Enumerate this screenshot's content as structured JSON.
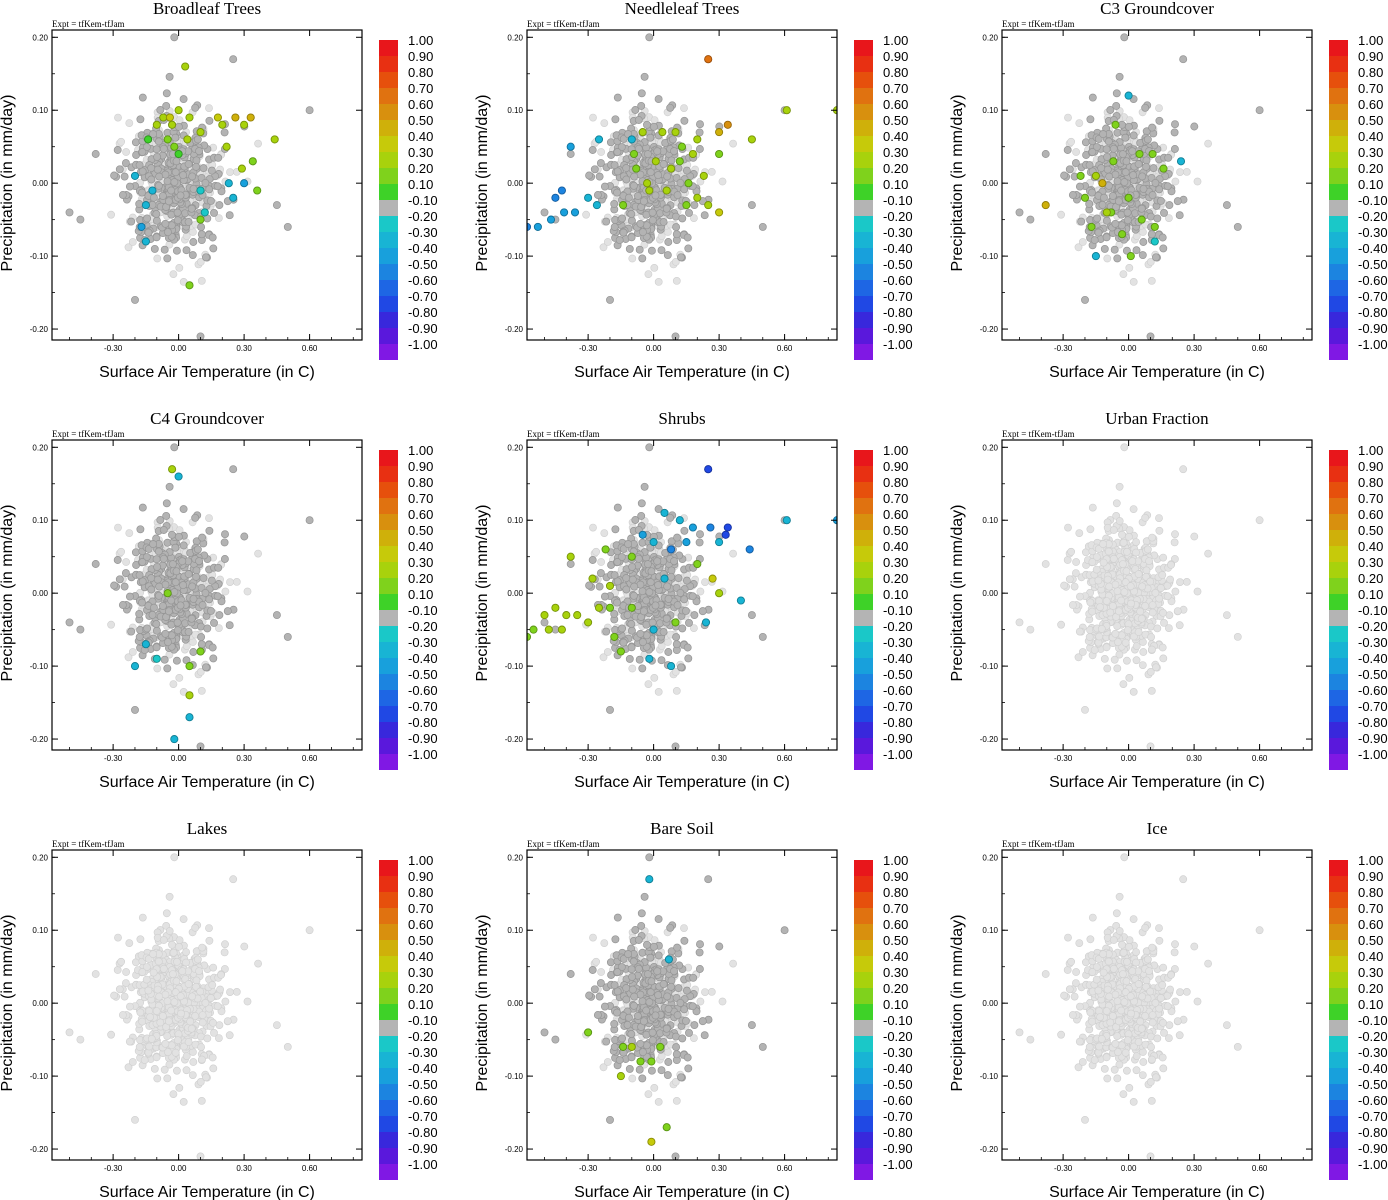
{
  "figure": {
    "expt_label": "Expt = tfKem-tfJam",
    "xlabel": "Surface Air Temperature (in C)",
    "ylabel": "Precipitation (in mm/day)"
  },
  "axes": {
    "xlim": [
      -0.58,
      0.84
    ],
    "ylim": [
      -0.215,
      0.21
    ],
    "xticks": [
      -0.3,
      0.0,
      0.3,
      0.6
    ],
    "xtick_labels": [
      "-0.30",
      "0.00",
      "0.30",
      "0.60"
    ],
    "yticks": [
      -0.2,
      -0.1,
      0.0,
      0.1,
      0.2
    ],
    "ytick_labels": [
      "-0.20",
      "-0.10",
      "0.00",
      "0.10",
      "0.20"
    ]
  },
  "colorbar": {
    "labels": [
      "1.00",
      "0.90",
      "0.80",
      "0.70",
      "0.60",
      "0.50",
      "0.40",
      "0.30",
      "0.20",
      "0.10",
      "-0.10",
      "-0.20",
      "-0.30",
      "-0.40",
      "-0.50",
      "-0.60",
      "-0.70",
      "-0.80",
      "-0.90",
      "-1.00"
    ],
    "colors": [
      "#e8161b",
      "#e83012",
      "#e6500c",
      "#e07210",
      "#d8900e",
      "#cfb00a",
      "#c6ca0a",
      "#a8d20c",
      "#7fd21c",
      "#3ed228",
      "#b4b4b4",
      "#1ac8c8",
      "#18b4d4",
      "#18a0dc",
      "#1c84e0",
      "#1e66e4",
      "#2048e4",
      "#3828dc",
      "#5a18dc",
      "#8018e4"
    ]
  },
  "chart_data": [
    {
      "type": "scatter",
      "title": "Broadleaf Trees",
      "highlight": [
        {
          "x": 0.03,
          "y": 0.16,
          "v": 0.3
        },
        {
          "x": -0.07,
          "y": 0.09,
          "v": 0.35
        },
        {
          "x": -0.04,
          "y": 0.09,
          "v": 0.4
        },
        {
          "x": 0.0,
          "y": 0.1,
          "v": 0.25
        },
        {
          "x": 0.05,
          "y": 0.09,
          "v": 0.3
        },
        {
          "x": 0.18,
          "y": 0.09,
          "v": 0.4
        },
        {
          "x": 0.26,
          "y": 0.09,
          "v": 0.45
        },
        {
          "x": 0.33,
          "y": 0.09,
          "v": 0.5
        },
        {
          "x": 0.2,
          "y": 0.08,
          "v": 0.35
        },
        {
          "x": -0.1,
          "y": 0.08,
          "v": 0.3
        },
        {
          "x": -0.03,
          "y": 0.08,
          "v": 0.3
        },
        {
          "x": 0.1,
          "y": 0.07,
          "v": 0.35
        },
        {
          "x": 0.3,
          "y": 0.08,
          "v": 0.3
        },
        {
          "x": -0.14,
          "y": 0.06,
          "v": 0.15
        },
        {
          "x": -0.05,
          "y": 0.06,
          "v": 0.2
        },
        {
          "x": 0.04,
          "y": 0.06,
          "v": 0.25
        },
        {
          "x": 0.44,
          "y": 0.06,
          "v": 0.35
        },
        {
          "x": 0.22,
          "y": 0.05,
          "v": 0.3
        },
        {
          "x": -0.02,
          "y": 0.05,
          "v": 0.2
        },
        {
          "x": 0.34,
          "y": 0.03,
          "v": 0.2
        },
        {
          "x": 0.29,
          "y": 0.02,
          "v": 0.3
        },
        {
          "x": -0.2,
          "y": 0.01,
          "v": -0.3
        },
        {
          "x": 0.3,
          "y": 0.0,
          "v": -0.4
        },
        {
          "x": 0.23,
          "y": 0.0,
          "v": -0.3
        },
        {
          "x": 0.36,
          "y": -0.01,
          "v": 0.2
        },
        {
          "x": -0.12,
          "y": -0.01,
          "v": -0.3
        },
        {
          "x": 0.1,
          "y": -0.01,
          "v": -0.2
        },
        {
          "x": -0.15,
          "y": -0.03,
          "v": -0.3
        },
        {
          "x": 0.25,
          "y": -0.02,
          "v": -0.35
        },
        {
          "x": 0.12,
          "y": -0.04,
          "v": -0.25
        },
        {
          "x": -0.17,
          "y": -0.06,
          "v": -0.4
        },
        {
          "x": 0.1,
          "y": -0.05,
          "v": 0.2
        },
        {
          "x": -0.15,
          "y": -0.08,
          "v": -0.35
        },
        {
          "x": 0.05,
          "y": -0.14,
          "v": 0.2
        },
        {
          "x": 0.0,
          "y": 0.04,
          "v": 0.15
        }
      ]
    },
    {
      "type": "scatter",
      "title": "Needleleaf Trees",
      "highlight": [
        {
          "x": 0.25,
          "y": 0.17,
          "v": 0.65
        },
        {
          "x": 0.61,
          "y": 0.1,
          "v": 0.35
        },
        {
          "x": 0.84,
          "y": 0.1,
          "v": 0.35
        },
        {
          "x": 0.34,
          "y": 0.08,
          "v": 0.6
        },
        {
          "x": 0.3,
          "y": 0.07,
          "v": 0.45
        },
        {
          "x": 0.45,
          "y": 0.06,
          "v": 0.3
        },
        {
          "x": 0.1,
          "y": 0.07,
          "v": 0.3
        },
        {
          "x": 0.04,
          "y": 0.07,
          "v": 0.25
        },
        {
          "x": -0.05,
          "y": 0.07,
          "v": 0.3
        },
        {
          "x": 0.2,
          "y": 0.06,
          "v": 0.3
        },
        {
          "x": -0.1,
          "y": 0.06,
          "v": -0.35
        },
        {
          "x": -0.25,
          "y": 0.06,
          "v": -0.3
        },
        {
          "x": -0.38,
          "y": 0.05,
          "v": -0.4
        },
        {
          "x": -0.09,
          "y": 0.04,
          "v": 0.2
        },
        {
          "x": 0.13,
          "y": 0.05,
          "v": 0.2
        },
        {
          "x": 0.18,
          "y": 0.04,
          "v": 0.3
        },
        {
          "x": 0.3,
          "y": 0.04,
          "v": 0.2
        },
        {
          "x": 0.01,
          "y": 0.03,
          "v": 0.3
        },
        {
          "x": 0.12,
          "y": 0.03,
          "v": 0.2
        },
        {
          "x": -0.08,
          "y": 0.02,
          "v": 0.2
        },
        {
          "x": 0.08,
          "y": 0.02,
          "v": 0.25
        },
        {
          "x": 0.16,
          "y": 0.0,
          "v": 0.2
        },
        {
          "x": 0.23,
          "y": 0.01,
          "v": 0.25
        },
        {
          "x": -0.03,
          "y": 0.0,
          "v": 0.3
        },
        {
          "x": -0.42,
          "y": -0.01,
          "v": -0.5
        },
        {
          "x": -0.45,
          "y": -0.02,
          "v": -0.5
        },
        {
          "x": -0.3,
          "y": -0.02,
          "v": -0.3
        },
        {
          "x": 0.06,
          "y": -0.01,
          "v": 0.3
        },
        {
          "x": 0.2,
          "y": -0.02,
          "v": 0.25
        },
        {
          "x": -0.02,
          "y": -0.01,
          "v": 0.35
        },
        {
          "x": 0.25,
          "y": -0.03,
          "v": 0.35
        },
        {
          "x": 0.3,
          "y": -0.04,
          "v": 0.4
        },
        {
          "x": -0.26,
          "y": -0.03,
          "v": -0.35
        },
        {
          "x": -0.36,
          "y": -0.04,
          "v": -0.4
        },
        {
          "x": -0.41,
          "y": -0.04,
          "v": -0.45
        },
        {
          "x": -0.47,
          "y": -0.05,
          "v": -0.4
        },
        {
          "x": -0.53,
          "y": -0.06,
          "v": -0.4
        },
        {
          "x": -0.58,
          "y": -0.06,
          "v": -0.5
        },
        {
          "x": -0.14,
          "y": -0.03,
          "v": 0.2
        },
        {
          "x": 0.15,
          "y": -0.03,
          "v": 0.2
        }
      ]
    },
    {
      "type": "scatter",
      "title": "C3 Groundcover",
      "highlight": [
        {
          "x": 0.0,
          "y": 0.12,
          "v": -0.3
        },
        {
          "x": -0.06,
          "y": 0.08,
          "v": 0.2
        },
        {
          "x": 0.11,
          "y": 0.04,
          "v": 0.2
        },
        {
          "x": 0.05,
          "y": 0.04,
          "v": 0.2
        },
        {
          "x": -0.07,
          "y": 0.03,
          "v": 0.2
        },
        {
          "x": -0.15,
          "y": 0.01,
          "v": 0.25
        },
        {
          "x": -0.22,
          "y": 0.01,
          "v": 0.2
        },
        {
          "x": 0.16,
          "y": 0.02,
          "v": 0.2
        },
        {
          "x": 0.24,
          "y": 0.03,
          "v": -0.3
        },
        {
          "x": -0.12,
          "y": 0.0,
          "v": 0.45
        },
        {
          "x": -0.38,
          "y": -0.03,
          "v": 0.45
        },
        {
          "x": -0.2,
          "y": -0.02,
          "v": 0.2
        },
        {
          "x": -0.08,
          "y": -0.04,
          "v": 0.2
        },
        {
          "x": 0.0,
          "y": -0.02,
          "v": 0.2
        },
        {
          "x": 0.06,
          "y": -0.05,
          "v": 0.2
        },
        {
          "x": 0.12,
          "y": -0.06,
          "v": 0.2
        },
        {
          "x": -0.17,
          "y": -0.06,
          "v": 0.2
        },
        {
          "x": -0.03,
          "y": -0.07,
          "v": 0.2
        },
        {
          "x": -0.15,
          "y": -0.1,
          "v": -0.3
        },
        {
          "x": 0.01,
          "y": -0.1,
          "v": 0.2
        },
        {
          "x": 0.12,
          "y": -0.08,
          "v": -0.25
        },
        {
          "x": -0.1,
          "y": -0.04,
          "v": 0.25
        }
      ]
    },
    {
      "type": "scatter",
      "title": "C4 Groundcover",
      "highlight": [
        {
          "x": -0.03,
          "y": 0.17,
          "v": 0.3
        },
        {
          "x": 0.0,
          "y": 0.16,
          "v": -0.3
        },
        {
          "x": -0.05,
          "y": 0.0,
          "v": 0.2
        },
        {
          "x": -0.15,
          "y": -0.07,
          "v": -0.3
        },
        {
          "x": -0.1,
          "y": -0.09,
          "v": -0.25
        },
        {
          "x": -0.2,
          "y": -0.1,
          "v": -0.3
        },
        {
          "x": 0.1,
          "y": -0.08,
          "v": 0.2
        },
        {
          "x": 0.05,
          "y": -0.1,
          "v": 0.2
        },
        {
          "x": 0.05,
          "y": -0.14,
          "v": 0.3
        },
        {
          "x": 0.05,
          "y": -0.17,
          "v": -0.3
        },
        {
          "x": -0.02,
          "y": -0.2,
          "v": -0.3
        }
      ]
    },
    {
      "type": "scatter",
      "title": "Shrubs",
      "highlight": [
        {
          "x": 0.25,
          "y": 0.17,
          "v": -0.65
        },
        {
          "x": 0.05,
          "y": 0.11,
          "v": -0.3
        },
        {
          "x": 0.12,
          "y": 0.1,
          "v": -0.3
        },
        {
          "x": 0.18,
          "y": 0.09,
          "v": -0.4
        },
        {
          "x": 0.26,
          "y": 0.09,
          "v": -0.5
        },
        {
          "x": 0.34,
          "y": 0.09,
          "v": -0.75
        },
        {
          "x": 0.33,
          "y": 0.08,
          "v": -0.7
        },
        {
          "x": 0.61,
          "y": 0.1,
          "v": -0.3
        },
        {
          "x": 0.84,
          "y": 0.1,
          "v": -0.4
        },
        {
          "x": -0.05,
          "y": 0.08,
          "v": -0.4
        },
        {
          "x": 0.0,
          "y": 0.07,
          "v": -0.3
        },
        {
          "x": 0.08,
          "y": 0.06,
          "v": -0.5
        },
        {
          "x": 0.15,
          "y": 0.07,
          "v": -0.45
        },
        {
          "x": 0.3,
          "y": 0.07,
          "v": -0.3
        },
        {
          "x": 0.44,
          "y": 0.06,
          "v": -0.5
        },
        {
          "x": -0.22,
          "y": 0.06,
          "v": 0.2
        },
        {
          "x": -0.1,
          "y": 0.05,
          "v": 0.2
        },
        {
          "x": 0.2,
          "y": 0.04,
          "v": 0.2
        },
        {
          "x": -0.38,
          "y": 0.05,
          "v": 0.35
        },
        {
          "x": -0.28,
          "y": 0.02,
          "v": 0.3
        },
        {
          "x": -0.2,
          "y": 0.01,
          "v": 0.3
        },
        {
          "x": 0.05,
          "y": 0.02,
          "v": -0.35
        },
        {
          "x": 0.27,
          "y": 0.02,
          "v": 0.4
        },
        {
          "x": 0.3,
          "y": 0.0,
          "v": 0.3
        },
        {
          "x": -0.45,
          "y": -0.02,
          "v": 0.25
        },
        {
          "x": -0.5,
          "y": -0.03,
          "v": 0.3
        },
        {
          "x": -0.4,
          "y": -0.03,
          "v": 0.3
        },
        {
          "x": -0.35,
          "y": -0.03,
          "v": 0.3
        },
        {
          "x": -0.3,
          "y": -0.04,
          "v": 0.35
        },
        {
          "x": -0.25,
          "y": -0.02,
          "v": 0.3
        },
        {
          "x": -0.2,
          "y": -0.02,
          "v": 0.2
        },
        {
          "x": -0.55,
          "y": -0.05,
          "v": 0.2
        },
        {
          "x": -0.48,
          "y": -0.05,
          "v": 0.25
        },
        {
          "x": -0.42,
          "y": -0.05,
          "v": 0.35
        },
        {
          "x": -0.58,
          "y": -0.06,
          "v": 0.2
        },
        {
          "x": 0.4,
          "y": -0.01,
          "v": -0.3
        },
        {
          "x": -0.1,
          "y": -0.02,
          "v": 0.2
        },
        {
          "x": 0.1,
          "y": -0.04,
          "v": 0.2
        },
        {
          "x": -0.18,
          "y": -0.06,
          "v": 0.2
        },
        {
          "x": 0.0,
          "y": -0.05,
          "v": -0.35
        },
        {
          "x": -0.15,
          "y": -0.08,
          "v": 0.2
        },
        {
          "x": -0.02,
          "y": -0.09,
          "v": -0.35
        },
        {
          "x": 0.08,
          "y": -0.1,
          "v": -0.3
        },
        {
          "x": 0.24,
          "y": -0.04,
          "v": -0.3
        }
      ]
    },
    {
      "type": "scatter",
      "title": "Urban Fraction",
      "highlight": []
    },
    {
      "type": "scatter",
      "title": "Lakes",
      "highlight": []
    },
    {
      "type": "scatter",
      "title": "Bare Soil",
      "highlight": [
        {
          "x": -0.02,
          "y": 0.17,
          "v": -0.3
        },
        {
          "x": 0.07,
          "y": 0.06,
          "v": -0.3
        },
        {
          "x": -0.3,
          "y": -0.04,
          "v": 0.2
        },
        {
          "x": -0.14,
          "y": -0.06,
          "v": 0.2
        },
        {
          "x": -0.1,
          "y": -0.06,
          "v": 0.3
        },
        {
          "x": 0.03,
          "y": -0.06,
          "v": 0.2
        },
        {
          "x": -0.06,
          "y": -0.08,
          "v": 0.2
        },
        {
          "x": -0.01,
          "y": -0.08,
          "v": 0.2
        },
        {
          "x": -0.15,
          "y": -0.1,
          "v": 0.35
        },
        {
          "x": 0.06,
          "y": -0.17,
          "v": 0.2
        },
        {
          "x": -0.01,
          "y": -0.19,
          "v": 0.4
        }
      ]
    },
    {
      "type": "scatter",
      "title": "Ice",
      "highlight": []
    }
  ]
}
